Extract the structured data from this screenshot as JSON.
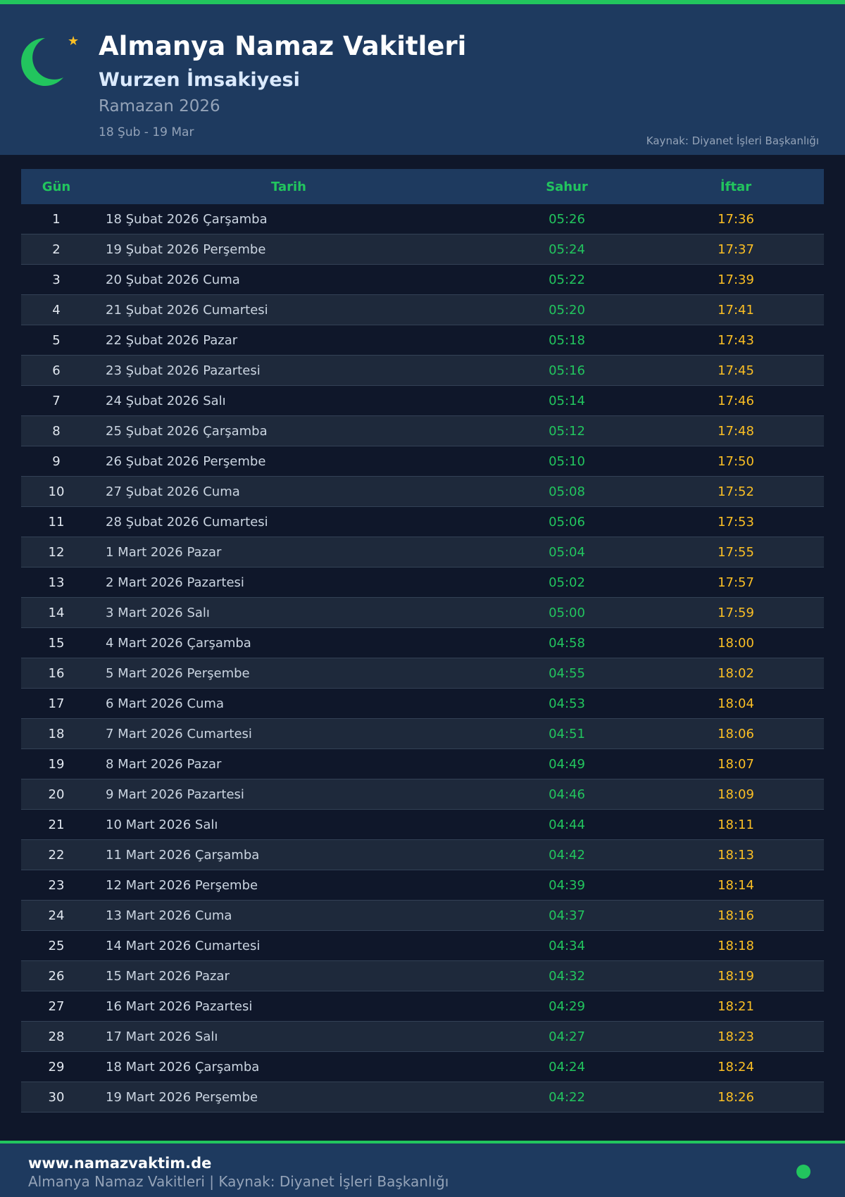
{
  "header": {
    "title": "Almanya Namaz Vakitleri",
    "subtitle": "Wurzen İmsakiyesi",
    "period": "Ramazan 2026",
    "range": "18 Şub - 19 Mar",
    "source": "Kaynak: Diyanet İşleri Başkanlığı"
  },
  "colors": {
    "accent": "#22c55e",
    "iftar": "#fbbf24",
    "header_bg": "#1e3a5f",
    "page_bg": "#0f172a"
  },
  "table": {
    "headers": {
      "day": "Gün",
      "date": "Tarih",
      "sahur": "Sahur",
      "iftar": "İftar"
    },
    "rows": [
      {
        "day": "1",
        "date": "18 Şubat 2026 Çarşamba",
        "sahur": "05:26",
        "iftar": "17:36"
      },
      {
        "day": "2",
        "date": "19 Şubat 2026 Perşembe",
        "sahur": "05:24",
        "iftar": "17:37"
      },
      {
        "day": "3",
        "date": "20 Şubat 2026 Cuma",
        "sahur": "05:22",
        "iftar": "17:39"
      },
      {
        "day": "4",
        "date": "21 Şubat 2026 Cumartesi",
        "sahur": "05:20",
        "iftar": "17:41"
      },
      {
        "day": "5",
        "date": "22 Şubat 2026 Pazar",
        "sahur": "05:18",
        "iftar": "17:43"
      },
      {
        "day": "6",
        "date": "23 Şubat 2026 Pazartesi",
        "sahur": "05:16",
        "iftar": "17:45"
      },
      {
        "day": "7",
        "date": "24 Şubat 2026 Salı",
        "sahur": "05:14",
        "iftar": "17:46"
      },
      {
        "day": "8",
        "date": "25 Şubat 2026 Çarşamba",
        "sahur": "05:12",
        "iftar": "17:48"
      },
      {
        "day": "9",
        "date": "26 Şubat 2026 Perşembe",
        "sahur": "05:10",
        "iftar": "17:50"
      },
      {
        "day": "10",
        "date": "27 Şubat 2026 Cuma",
        "sahur": "05:08",
        "iftar": "17:52"
      },
      {
        "day": "11",
        "date": "28 Şubat 2026 Cumartesi",
        "sahur": "05:06",
        "iftar": "17:53"
      },
      {
        "day": "12",
        "date": "1 Mart 2026 Pazar",
        "sahur": "05:04",
        "iftar": "17:55"
      },
      {
        "day": "13",
        "date": "2 Mart 2026 Pazartesi",
        "sahur": "05:02",
        "iftar": "17:57"
      },
      {
        "day": "14",
        "date": "3 Mart 2026 Salı",
        "sahur": "05:00",
        "iftar": "17:59"
      },
      {
        "day": "15",
        "date": "4 Mart 2026 Çarşamba",
        "sahur": "04:58",
        "iftar": "18:00"
      },
      {
        "day": "16",
        "date": "5 Mart 2026 Perşembe",
        "sahur": "04:55",
        "iftar": "18:02"
      },
      {
        "day": "17",
        "date": "6 Mart 2026 Cuma",
        "sahur": "04:53",
        "iftar": "18:04"
      },
      {
        "day": "18",
        "date": "7 Mart 2026 Cumartesi",
        "sahur": "04:51",
        "iftar": "18:06"
      },
      {
        "day": "19",
        "date": "8 Mart 2026 Pazar",
        "sahur": "04:49",
        "iftar": "18:07"
      },
      {
        "day": "20",
        "date": "9 Mart 2026 Pazartesi",
        "sahur": "04:46",
        "iftar": "18:09"
      },
      {
        "day": "21",
        "date": "10 Mart 2026 Salı",
        "sahur": "04:44",
        "iftar": "18:11"
      },
      {
        "day": "22",
        "date": "11 Mart 2026 Çarşamba",
        "sahur": "04:42",
        "iftar": "18:13"
      },
      {
        "day": "23",
        "date": "12 Mart 2026 Perşembe",
        "sahur": "04:39",
        "iftar": "18:14"
      },
      {
        "day": "24",
        "date": "13 Mart 2026 Cuma",
        "sahur": "04:37",
        "iftar": "18:16"
      },
      {
        "day": "25",
        "date": "14 Mart 2026 Cumartesi",
        "sahur": "04:34",
        "iftar": "18:18"
      },
      {
        "day": "26",
        "date": "15 Mart 2026 Pazar",
        "sahur": "04:32",
        "iftar": "18:19"
      },
      {
        "day": "27",
        "date": "16 Mart 2026 Pazartesi",
        "sahur": "04:29",
        "iftar": "18:21"
      },
      {
        "day": "28",
        "date": "17 Mart 2026 Salı",
        "sahur": "04:27",
        "iftar": "18:23"
      },
      {
        "day": "29",
        "date": "18 Mart 2026 Çarşamba",
        "sahur": "04:24",
        "iftar": "18:24"
      },
      {
        "day": "30",
        "date": "19 Mart 2026 Perşembe",
        "sahur": "04:22",
        "iftar": "18:26"
      }
    ]
  },
  "footer": {
    "url": "www.namazvaktim.de",
    "text": "Almanya Namaz Vakitleri | Kaynak: Diyanet İşleri Başkanlığı"
  }
}
